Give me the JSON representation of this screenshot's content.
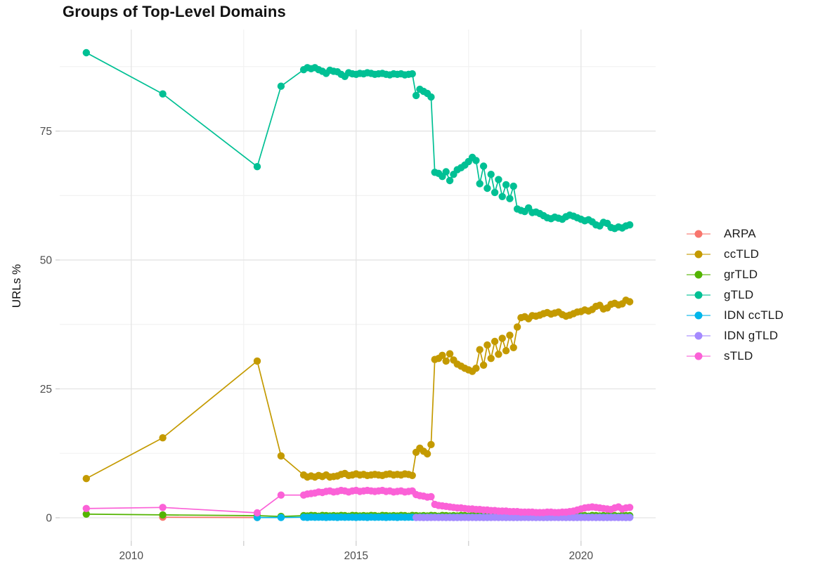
{
  "title": "Groups of Top-Level Domains",
  "axes": {
    "y_label": "URLs %",
    "x_ticks": [
      2010,
      2015,
      2020
    ],
    "x_minor_ticks": [
      2012.5,
      2017.5
    ],
    "y_ticks": [
      0,
      25,
      50,
      75
    ],
    "y_minor_ticks": [
      12.5,
      37.5,
      62.5,
      87.5
    ],
    "x_range": [
      2008.41,
      2021.66
    ],
    "y_range": [
      -4.5,
      94.7
    ],
    "grid": "on"
  },
  "legend": {
    "position": "right",
    "items": [
      {
        "label": "ARPA",
        "color": "#F8766D"
      },
      {
        "label": "ccTLD",
        "color": "#C49A00"
      },
      {
        "label": "grTLD",
        "color": "#53B400"
      },
      {
        "label": "gTLD",
        "color": "#00C094"
      },
      {
        "label": "IDN ccTLD",
        "color": "#00B6EB"
      },
      {
        "label": "IDN gTLD",
        "color": "#A58AFF"
      },
      {
        "label": "sTLD",
        "color": "#FB61D7"
      }
    ]
  },
  "chart_data": {
    "type": "line",
    "title": "Groups of Top-Level Domains",
    "xlabel": "",
    "ylabel": "URLs %",
    "monthly_step_years": 0.0833333,
    "series": [
      {
        "name": "ARPA",
        "color": "#F8766D",
        "points": [
          [
            2010.7,
            0.1
          ],
          [
            2012.8,
            0.05
          ]
        ]
      },
      {
        "name": "ccTLD",
        "color": "#C49A00",
        "points": [
          [
            2009.0,
            7.6
          ],
          [
            2010.7,
            15.5
          ],
          [
            2012.8,
            30.4
          ],
          [
            2013.33,
            12.0
          ]
        ],
        "monthly": {
          "start_year": 2013.833,
          "values": [
            8.3,
            7.9,
            8.1,
            7.9,
            8.2,
            8.0,
            8.3,
            7.9,
            8.0,
            8.1,
            8.4,
            8.6,
            8.2,
            8.3,
            8.5,
            8.3,
            8.4,
            8.2,
            8.3,
            8.4,
            8.3,
            8.2,
            8.4,
            8.5,
            8.3,
            8.4,
            8.3,
            8.5,
            8.4,
            8.2,
            12.7,
            13.5,
            12.9,
            12.4,
            14.2,
            30.7,
            30.9,
            31.5,
            30.4,
            31.8,
            30.6,
            29.8,
            29.4,
            29.0,
            28.7,
            28.4,
            29.0,
            32.6,
            29.6,
            33.5,
            30.9,
            34.2,
            31.7,
            34.8,
            32.4,
            35.4,
            33.0,
            37.0,
            38.8,
            39.0,
            38.6,
            39.2,
            39.1,
            39.3,
            39.6,
            39.8,
            39.5,
            39.7,
            39.9,
            39.4,
            39.1,
            39.3,
            39.6,
            39.9,
            40.0,
            40.3,
            40.1,
            40.4,
            41.0,
            41.2,
            40.5,
            40.7,
            41.4,
            41.6,
            41.3,
            41.5,
            42.2,
            41.9
          ]
        }
      },
      {
        "name": "grTLD",
        "color": "#53B400",
        "points": [
          [
            2009.0,
            0.7
          ],
          [
            2010.7,
            0.55
          ],
          [
            2012.8,
            0.4
          ],
          [
            2013.33,
            0.25
          ]
        ],
        "monthly": {
          "start_year": 2013.833,
          "values": [
            0.4,
            0.35,
            0.45,
            0.4,
            0.3,
            0.45,
            0.4,
            0.35,
            0.4,
            0.35,
            0.45,
            0.4,
            0.3,
            0.45,
            0.4,
            0.35,
            0.4,
            0.35,
            0.45,
            0.4,
            0.3,
            0.45,
            0.4,
            0.35,
            0.4,
            0.35,
            0.45,
            0.4,
            0.3,
            0.45,
            0.4,
            0.35,
            0.4,
            0.35,
            0.45,
            0.4,
            0.3,
            0.45,
            0.4,
            0.35,
            0.4,
            0.35,
            0.45,
            0.4,
            0.3,
            0.45,
            0.4,
            0.35,
            0.4,
            0.35,
            0.45,
            0.4,
            0.3,
            0.45,
            0.4,
            0.35,
            0.4,
            0.35,
            0.45,
            0.4,
            0.3,
            0.45,
            0.4,
            0.35,
            0.4,
            0.35,
            0.45,
            0.4,
            0.3,
            0.45,
            0.4,
            0.35,
            0.4,
            0.35,
            0.45,
            0.4,
            0.3,
            0.45,
            0.4,
            0.35,
            0.4,
            0.35,
            0.45,
            0.4,
            0.3,
            0.45,
            0.4,
            0.4
          ]
        }
      },
      {
        "name": "gTLD",
        "color": "#00C094",
        "points": [
          [
            2009.0,
            90.2
          ],
          [
            2010.7,
            82.2
          ],
          [
            2012.8,
            68.1
          ],
          [
            2013.33,
            83.7
          ]
        ],
        "monthly": {
          "start_year": 2013.833,
          "values": [
            86.9,
            87.3,
            87.1,
            87.3,
            86.9,
            86.6,
            86.2,
            86.8,
            86.6,
            86.5,
            86.0,
            85.6,
            86.3,
            86.1,
            86.0,
            86.2,
            86.1,
            86.3,
            86.2,
            86.0,
            86.1,
            86.2,
            86.0,
            85.9,
            86.1,
            86.0,
            86.1,
            85.9,
            86.0,
            86.1,
            81.9,
            83.1,
            82.7,
            82.3,
            81.6,
            67.0,
            66.8,
            66.2,
            67.1,
            65.4,
            66.6,
            67.5,
            67.9,
            68.4,
            69.1,
            69.9,
            69.3,
            64.8,
            68.2,
            63.9,
            66.6,
            63.1,
            65.6,
            62.3,
            64.6,
            61.9,
            64.3,
            59.9,
            59.6,
            59.4,
            60.1,
            59.2,
            59.3,
            59.0,
            58.6,
            58.2,
            58.0,
            58.3,
            58.1,
            57.9,
            58.4,
            58.7,
            58.5,
            58.2,
            57.9,
            57.6,
            57.8,
            57.4,
            56.8,
            56.6,
            57.3,
            57.1,
            56.3,
            56.1,
            56.4,
            56.2,
            56.6,
            56.8
          ]
        }
      },
      {
        "name": "IDN ccTLD",
        "color": "#00B6EB",
        "points": [
          [
            2012.8,
            0.05
          ],
          [
            2013.33,
            0.05
          ]
        ],
        "monthly": {
          "start_year": 2013.833,
          "values": [
            0.1,
            0.08,
            0.12,
            0.09,
            0.11,
            0.1,
            0.08,
            0.1,
            0.1,
            0.08,
            0.12,
            0.09,
            0.11,
            0.1,
            0.08,
            0.1,
            0.1,
            0.08,
            0.12,
            0.09,
            0.11,
            0.1,
            0.08,
            0.1,
            0.1,
            0.08,
            0.12,
            0.09,
            0.11,
            0.1,
            0.08,
            0.1,
            0.1,
            0.08,
            0.12,
            0.09,
            0.11,
            0.1,
            0.08,
            0.1,
            0.1,
            0.08,
            0.12,
            0.09,
            0.11,
            0.1,
            0.08,
            0.1,
            0.1,
            0.08,
            0.12,
            0.09,
            0.11,
            0.1,
            0.08,
            0.1,
            0.1,
            0.08,
            0.12,
            0.09,
            0.11,
            0.1,
            0.08,
            0.1,
            0.1,
            0.08,
            0.12,
            0.09,
            0.11,
            0.1,
            0.08,
            0.1,
            0.1,
            0.08,
            0.12,
            0.09,
            0.11,
            0.1,
            0.08,
            0.1,
            0.1,
            0.08,
            0.12,
            0.09,
            0.11,
            0.1,
            0.08,
            0.1
          ]
        }
      },
      {
        "name": "IDN gTLD",
        "color": "#A58AFF",
        "monthly": {
          "start_year": 2016.333,
          "values": [
            0.05,
            0.07,
            0.04,
            0.06,
            0.05,
            0.08,
            0.05,
            0.06,
            0.05,
            0.07,
            0.04,
            0.06,
            0.05,
            0.08,
            0.05,
            0.06,
            0.05,
            0.07,
            0.04,
            0.06,
            0.05,
            0.08,
            0.05,
            0.06,
            0.05,
            0.07,
            0.04,
            0.06,
            0.05,
            0.08,
            0.05,
            0.06,
            0.05,
            0.07,
            0.04,
            0.06,
            0.05,
            0.08,
            0.05,
            0.06,
            0.05,
            0.07,
            0.04,
            0.06,
            0.05,
            0.08,
            0.05,
            0.06,
            0.05,
            0.07,
            0.04,
            0.06,
            0.05,
            0.08,
            0.05,
            0.06,
            0.05,
            0.05
          ]
        }
      },
      {
        "name": "sTLD",
        "color": "#FB61D7",
        "points": [
          [
            2009.0,
            1.8
          ],
          [
            2010.7,
            2.0
          ],
          [
            2012.8,
            0.95
          ],
          [
            2013.33,
            4.4
          ]
        ],
        "monthly": {
          "start_year": 2013.833,
          "values": [
            4.4,
            4.6,
            4.7,
            4.8,
            5.0,
            4.9,
            5.1,
            5.2,
            5.0,
            5.1,
            5.3,
            5.2,
            5.0,
            5.2,
            5.3,
            5.1,
            5.2,
            5.3,
            5.2,
            5.1,
            5.2,
            5.3,
            5.1,
            5.2,
            5.0,
            5.1,
            5.2,
            5.0,
            5.1,
            5.2,
            4.5,
            4.3,
            4.2,
            4.0,
            4.1,
            2.6,
            2.4,
            2.3,
            2.2,
            2.1,
            2.0,
            1.9,
            1.9,
            1.8,
            1.7,
            1.7,
            1.6,
            1.6,
            1.5,
            1.5,
            1.4,
            1.4,
            1.3,
            1.3,
            1.3,
            1.2,
            1.2,
            1.2,
            1.1,
            1.1,
            1.1,
            1.1,
            1.0,
            1.0,
            1.0,
            1.1,
            1.1,
            1.0,
            1.0,
            1.1,
            1.1,
            1.2,
            1.3,
            1.5,
            1.7,
            1.9,
            2.0,
            2.1,
            2.0,
            1.9,
            1.8,
            1.7,
            1.6,
            1.9,
            2.1,
            1.7,
            1.9,
            2.0
          ]
        }
      }
    ]
  },
  "style": {
    "background": "#ffffff",
    "grid_major": "#e4e4e4",
    "grid_minor": "#f1f1f1",
    "tick_color": "#cfcfcf",
    "axis_text_color": "#4d4d4d"
  }
}
